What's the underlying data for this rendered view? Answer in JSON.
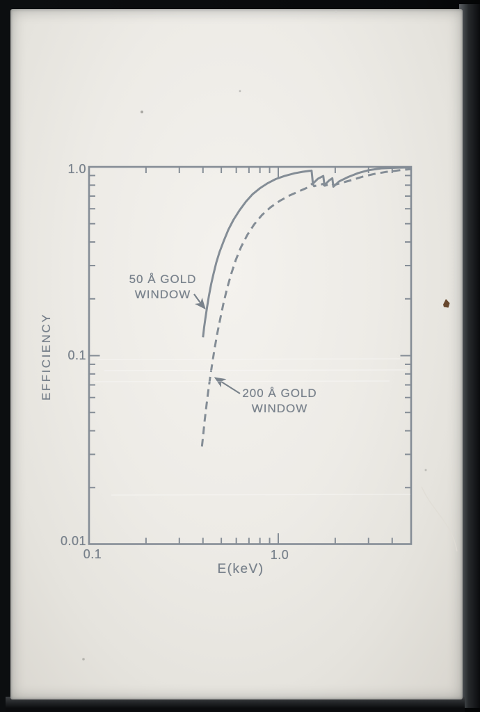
{
  "photo": {
    "description": "photographic slide of a detector efficiency plot",
    "ink_color": "#858d96",
    "text_color": "#78818b",
    "film_color": "#edebe6",
    "mount_color": "#0a0c0e"
  },
  "chart_data": {
    "type": "line",
    "title": "",
    "xlabel": "E(keV)",
    "ylabel": "EFFICIENCY",
    "x_scale": "log",
    "y_scale": "log",
    "xlim": [
      0.1,
      5.1
    ],
    "ylim": [
      0.01,
      1.0
    ],
    "x_tick_labels": [
      "0.1",
      "1.0"
    ],
    "y_tick_labels": [
      "1.0",
      "0.1",
      "0.01"
    ],
    "x_minor_ticks": [
      0.2,
      0.3,
      0.4,
      0.5,
      0.6,
      0.7,
      0.8,
      0.9,
      2,
      3,
      4
    ],
    "x_major_ticks": [
      1.0
    ],
    "y_minor_ticks": [
      0.9,
      0.8,
      0.7,
      0.6,
      0.5,
      0.4,
      0.3,
      0.2,
      0.09,
      0.08,
      0.07,
      0.06,
      0.05,
      0.04,
      0.03,
      0.02
    ],
    "y_major_ticks": [
      0.1
    ],
    "grid": false,
    "legend_position": "inline-annotations",
    "series": [
      {
        "name": "50 Å GOLD WINDOW",
        "style": "solid",
        "points": [
          [
            0.4,
            0.125
          ],
          [
            0.406,
            0.142
          ],
          [
            0.413,
            0.16
          ],
          [
            0.421,
            0.182
          ],
          [
            0.43,
            0.207
          ],
          [
            0.442,
            0.24
          ],
          [
            0.455,
            0.272
          ],
          [
            0.47,
            0.31
          ],
          [
            0.49,
            0.355
          ],
          [
            0.515,
            0.405
          ],
          [
            0.545,
            0.465
          ],
          [
            0.58,
            0.525
          ],
          [
            0.625,
            0.59
          ],
          [
            0.675,
            0.655
          ],
          [
            0.73,
            0.715
          ],
          [
            0.8,
            0.77
          ],
          [
            0.88,
            0.82
          ],
          [
            0.97,
            0.862
          ],
          [
            1.08,
            0.895
          ],
          [
            1.22,
            0.925
          ],
          [
            1.35,
            0.942
          ],
          [
            1.5,
            0.955
          ],
          [
            1.525,
            0.815
          ],
          [
            1.62,
            0.865
          ],
          [
            1.73,
            0.895
          ],
          [
            1.755,
            0.8
          ],
          [
            1.85,
            0.845
          ],
          [
            1.93,
            0.87
          ],
          [
            1.955,
            0.785
          ],
          [
            2.1,
            0.838
          ],
          [
            2.35,
            0.885
          ],
          [
            2.65,
            0.928
          ],
          [
            3.0,
            0.96
          ],
          [
            3.5,
            0.982
          ],
          [
            4.2,
            0.99
          ],
          [
            5.0,
            0.994
          ]
        ]
      },
      {
        "name": "200 Å GOLD WINDOW",
        "style": "dashed",
        "points": [
          [
            0.395,
            0.033
          ],
          [
            0.401,
            0.038
          ],
          [
            0.408,
            0.045
          ],
          [
            0.416,
            0.053
          ],
          [
            0.425,
            0.063
          ],
          [
            0.436,
            0.076
          ],
          [
            0.448,
            0.091
          ],
          [
            0.461,
            0.109
          ],
          [
            0.476,
            0.131
          ],
          [
            0.493,
            0.156
          ],
          [
            0.513,
            0.189
          ],
          [
            0.536,
            0.226
          ],
          [
            0.563,
            0.269
          ],
          [
            0.596,
            0.321
          ],
          [
            0.636,
            0.376
          ],
          [
            0.686,
            0.436
          ],
          [
            0.746,
            0.496
          ],
          [
            0.82,
            0.556
          ],
          [
            0.91,
            0.611
          ],
          [
            1.02,
            0.661
          ],
          [
            1.15,
            0.706
          ],
          [
            1.3,
            0.746
          ],
          [
            1.43,
            0.778
          ],
          [
            1.52,
            0.818
          ],
          [
            1.545,
            0.79
          ],
          [
            1.72,
            0.812
          ],
          [
            1.76,
            0.795
          ],
          [
            1.92,
            0.815
          ],
          [
            1.96,
            0.8
          ],
          [
            2.15,
            0.822
          ],
          [
            2.45,
            0.852
          ],
          [
            2.8,
            0.888
          ],
          [
            3.2,
            0.916
          ],
          [
            3.7,
            0.94
          ],
          [
            4.4,
            0.96
          ],
          [
            5.0,
            0.973
          ]
        ]
      }
    ],
    "annotations": [
      {
        "target": "solid curve",
        "line1": "50 Å GOLD",
        "line2": "WINDOW"
      },
      {
        "target": "dashed curve",
        "line1": "200 Å GOLD",
        "line2": "WINDOW"
      }
    ]
  }
}
